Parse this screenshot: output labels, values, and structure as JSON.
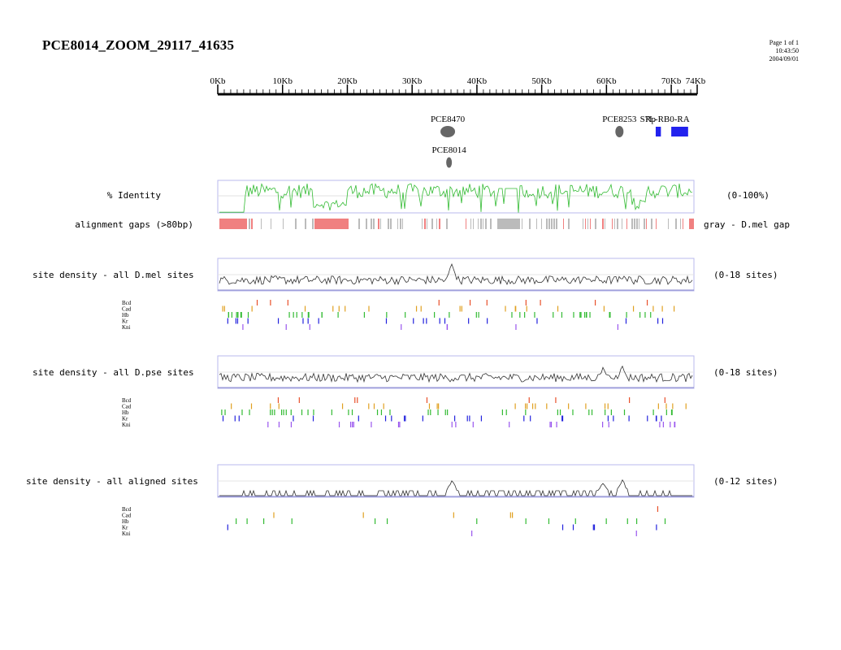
{
  "header": {
    "title": "PCE8014_ZOOM_29117_41635",
    "page": "Page 1 of 1",
    "time": "10:43:50",
    "date": "2004/09/01"
  },
  "ruler": {
    "ticks": [
      "0Kb",
      "10Kb",
      "20Kb",
      "30Kb",
      "40Kb",
      "50Kb",
      "60Kb",
      "70Kb",
      "74Kb"
    ],
    "max_kb": 74
  },
  "features": [
    {
      "label": "PCE8470",
      "kb": 35.5,
      "row": 0,
      "shape": "ellipse",
      "color": "#666666"
    },
    {
      "label": "PCE8014",
      "kb": 35.7,
      "row": 1,
      "shape": "ellipse",
      "color": "#666666"
    },
    {
      "label": "PCE8253",
      "kb": 62.0,
      "row": 0,
      "shape": "ellipse",
      "color": "#666666"
    },
    {
      "label": "Rp",
      "kb": 66.8,
      "row": 0,
      "shape": "none",
      "color": "#0000ff"
    },
    {
      "label": "S7L-RB0-RA",
      "kb": 69.0,
      "row": 0,
      "shape": "box",
      "color": "#2222ee",
      "start": 67.6,
      "end": 68.4
    },
    {
      "label": "",
      "kb": 71.5,
      "row": 0,
      "shape": "box",
      "color": "#2222ee",
      "start": 70.0,
      "end": 72.6
    }
  ],
  "tracks": {
    "identity": {
      "label": "% Identity",
      "range": "(0-100%)",
      "color": "#33bb33"
    },
    "gaps": {
      "label": "alignment gaps (>80bp)",
      "legend": "gray - D.mel gap",
      "colors": {
        "gap": "#f08080",
        "mel": "#bbbbbb"
      }
    },
    "density": [
      {
        "label": "site density - all D.mel sites",
        "range": "(0-18 sites)"
      },
      {
        "label": "site density - all D.pse sites",
        "range": "(0-18 sites)"
      },
      {
        "label": "site density - all aligned sites",
        "range": "(0-12 sites)"
      }
    ],
    "factors": [
      {
        "name": "Bcd",
        "color": "#e8502a"
      },
      {
        "name": "Cad",
        "color": "#e0a020"
      },
      {
        "name": "Hb",
        "color": "#33bb33"
      },
      {
        "name": "Kr",
        "color": "#2222dd"
      },
      {
        "name": "Kni",
        "color": "#9955ee"
      }
    ]
  }
}
